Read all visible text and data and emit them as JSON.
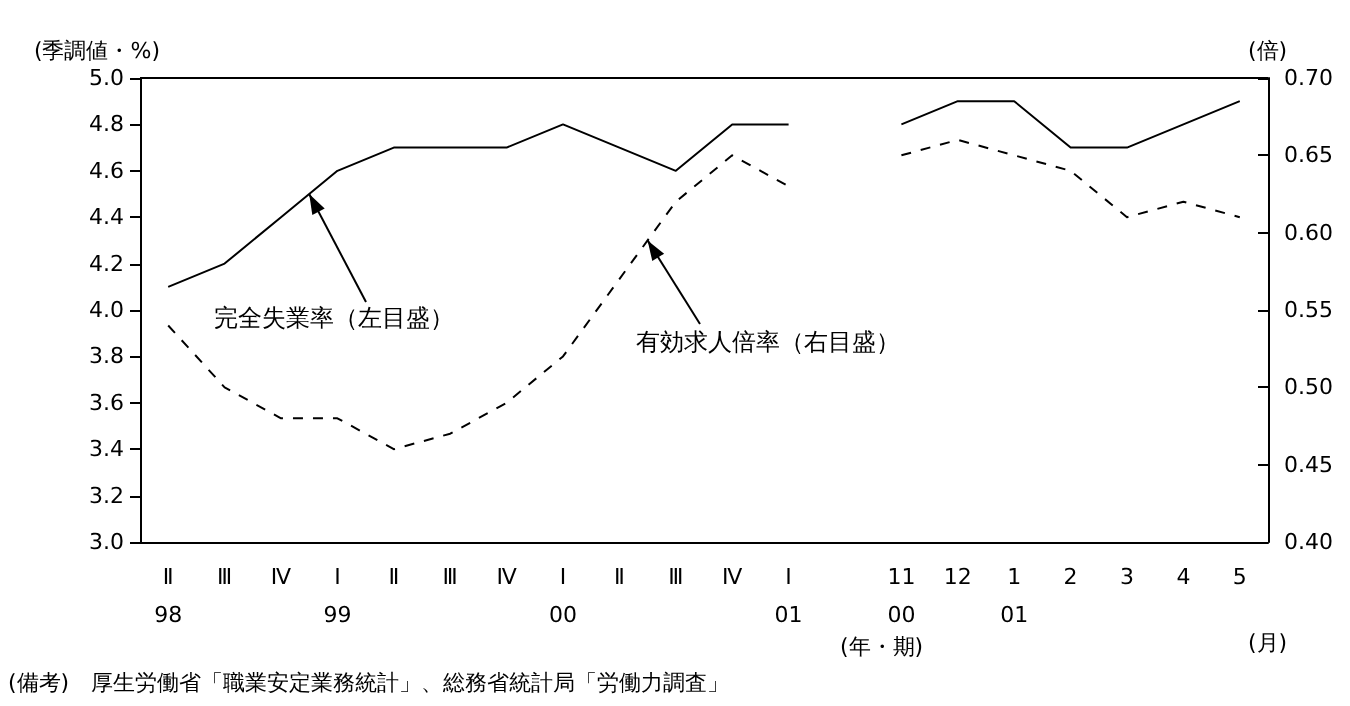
{
  "chart_data": {
    "type": "line",
    "ylabel": "(季調値・%)",
    "y2label": "(倍)",
    "xlabel": "(年・期)",
    "categories": [
      "Ⅱ\n98",
      "Ⅲ",
      "Ⅳ",
      "Ⅰ\n99",
      "Ⅱ",
      "Ⅲ",
      "Ⅳ",
      "Ⅰ\n00",
      "Ⅱ",
      "Ⅲ",
      "Ⅳ",
      "Ⅰ\n01",
      null,
      "11\n00",
      "12",
      "1\n01",
      "2",
      "3",
      "4",
      "5"
    ],
    "series": [
      {
        "name": "完全失業率（左目盛）",
        "color": "#000000",
        "line_style": "solid",
        "values": [
          4.1,
          4.2,
          4.4,
          4.6,
          4.7,
          4.7,
          4.7,
          4.8,
          4.7,
          4.6,
          4.8,
          4.8,
          null,
          4.8,
          4.9,
          4.9,
          4.7,
          4.7,
          4.8,
          4.9
        ]
      },
      {
        "name": "有効求人倍率（右目盛）",
        "color": "#000000",
        "line_style": "dashed",
        "axis": "y2",
        "values": [
          0.54,
          0.5,
          0.48,
          0.48,
          0.46,
          0.47,
          0.49,
          0.52,
          0.57,
          0.62,
          0.65,
          0.63,
          null,
          0.65,
          0.66,
          0.65,
          0.64,
          0.61,
          0.62,
          0.61
        ]
      }
    ],
    "ylim": [
      3.0,
      5.0
    ],
    "yticks": [
      {
        "value": 3.0,
        "label": "3.0"
      },
      {
        "value": 3.2,
        "label": "3.2"
      },
      {
        "value": 3.4,
        "label": "3.4"
      },
      {
        "value": 3.6,
        "label": "3.6"
      },
      {
        "value": 3.8,
        "label": "3.8"
      },
      {
        "value": 4.0,
        "label": "4.0"
      },
      {
        "value": 4.2,
        "label": "4.2"
      },
      {
        "value": 4.4,
        "label": "4.4"
      },
      {
        "value": 4.6,
        "label": "4.6"
      },
      {
        "value": 4.8,
        "label": "4.8"
      },
      {
        "value": 5.0,
        "label": "5.0"
      }
    ],
    "y2lim": [
      0.4,
      0.7
    ],
    "y2ticks": [
      {
        "value": 0.4,
        "label": "0.40"
      },
      {
        "value": 0.45,
        "label": "0.45"
      },
      {
        "value": 0.5,
        "label": "0.50"
      },
      {
        "value": 0.55,
        "label": "0.55"
      },
      {
        "value": 0.6,
        "label": "0.60"
      },
      {
        "value": 0.65,
        "label": "0.65"
      },
      {
        "value": 0.7,
        "label": "0.70"
      }
    ],
    "annotations": [
      "(月)",
      "(備考)　厚生労働省「職業安定業務統計」、総務省統計局「労働力調査」"
    ],
    "marker": "none",
    "grid": false,
    "legend": false
  }
}
